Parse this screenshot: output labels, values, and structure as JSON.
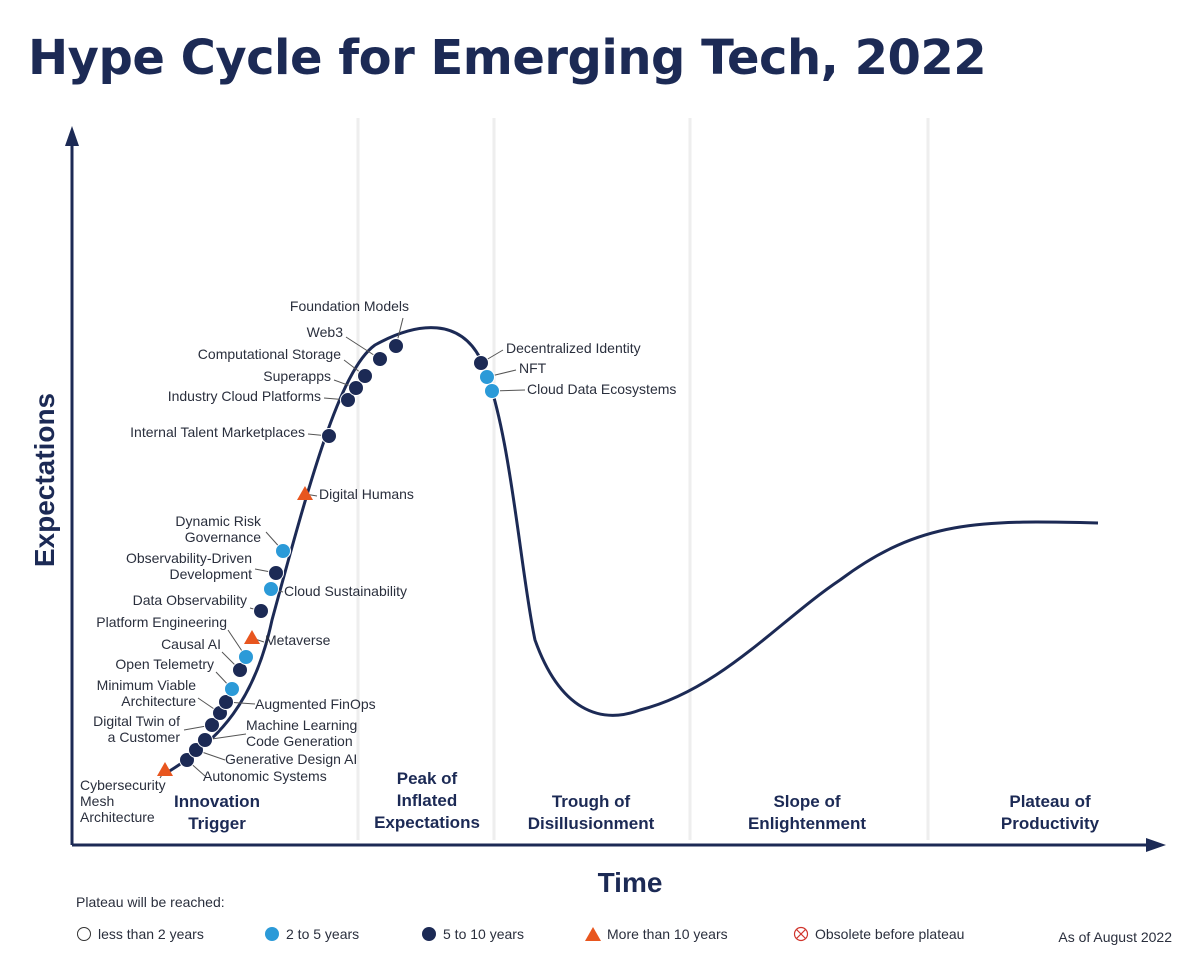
{
  "title": "Hype Cycle for Emerging Tech, 2022",
  "axes": {
    "y_label": "Expectations",
    "x_label": "Time"
  },
  "colors": {
    "navy": "#1c2a55",
    "light_blue": "#2b9ad8",
    "orange": "#e8561f",
    "obsolete_red": "#d0342c",
    "divider": "#eeeeee"
  },
  "phases": [
    {
      "lines": [
        "Innovation",
        "Trigger"
      ]
    },
    {
      "lines": [
        "Peak of",
        "Inflated",
        "Expectations"
      ]
    },
    {
      "lines": [
        "Trough of",
        "Disillusionment"
      ]
    },
    {
      "lines": [
        "Slope of",
        "Enlightenment"
      ]
    },
    {
      "lines": [
        "Plateau of",
        "Productivity"
      ]
    }
  ],
  "technologies": [
    {
      "lines": [
        "Cybersecurity",
        "Mesh",
        "Architecture"
      ],
      "category": "more_than_10"
    },
    {
      "lines": [
        "Autonomic Systems"
      ],
      "category": "5_to_10"
    },
    {
      "lines": [
        "Generative Design AI"
      ],
      "category": "5_to_10"
    },
    {
      "lines": [
        "Machine Learning",
        "Code Generation"
      ],
      "category": "5_to_10"
    },
    {
      "lines": [
        "Digital Twin of",
        "a Customer"
      ],
      "category": "5_to_10"
    },
    {
      "lines": [
        "Minimum Viable",
        "Architecture"
      ],
      "category": "5_to_10"
    },
    {
      "lines": [
        "Augmented FinOps"
      ],
      "category": "5_to_10"
    },
    {
      "lines": [
        "Open Telemetry"
      ],
      "category": "2_to_5"
    },
    {
      "lines": [
        "Causal AI"
      ],
      "category": "5_to_10"
    },
    {
      "lines": [
        "Platform Engineering"
      ],
      "category": "2_to_5"
    },
    {
      "lines": [
        "Metaverse"
      ],
      "category": "more_than_10"
    },
    {
      "lines": [
        "Data Observability"
      ],
      "category": "5_to_10"
    },
    {
      "lines": [
        "Cloud Sustainability"
      ],
      "category": "2_to_5"
    },
    {
      "lines": [
        "Observability-Driven",
        "Development"
      ],
      "category": "5_to_10"
    },
    {
      "lines": [
        "Dynamic Risk",
        "Governance"
      ],
      "category": "2_to_5"
    },
    {
      "lines": [
        "Digital Humans"
      ],
      "category": "more_than_10"
    },
    {
      "lines": [
        "Internal Talent Marketplaces"
      ],
      "category": "5_to_10"
    },
    {
      "lines": [
        "Industry Cloud Platforms"
      ],
      "category": "5_to_10"
    },
    {
      "lines": [
        "Superapps"
      ],
      "category": "5_to_10"
    },
    {
      "lines": [
        "Computational Storage"
      ],
      "category": "5_to_10"
    },
    {
      "lines": [
        "Web3"
      ],
      "category": "5_to_10"
    },
    {
      "lines": [
        "Foundation Models"
      ],
      "category": "5_to_10"
    },
    {
      "lines": [
        "Decentralized Identity"
      ],
      "category": "5_to_10"
    },
    {
      "lines": [
        "NFT"
      ],
      "category": "2_to_5"
    },
    {
      "lines": [
        "Cloud Data Ecosystems"
      ],
      "category": "2_to_5"
    }
  ],
  "legend": {
    "title": "Plateau will be reached:",
    "items": [
      {
        "key": "less_than_2",
        "label": "less than 2 years",
        "symbol": "open-circle-icon"
      },
      {
        "key": "2_to_5",
        "label": "2 to 5 years",
        "symbol": "light-blue-circle-icon"
      },
      {
        "key": "5_to_10",
        "label": "5 to 10 years",
        "symbol": "navy-circle-icon"
      },
      {
        "key": "more_than_10",
        "label": "More than 10 years",
        "symbol": "orange-triangle-icon"
      },
      {
        "key": "obsolete",
        "label": "Obsolete before plateau",
        "symbol": "crossed-circle-icon"
      }
    ]
  },
  "as_of": "As of August 2022"
}
